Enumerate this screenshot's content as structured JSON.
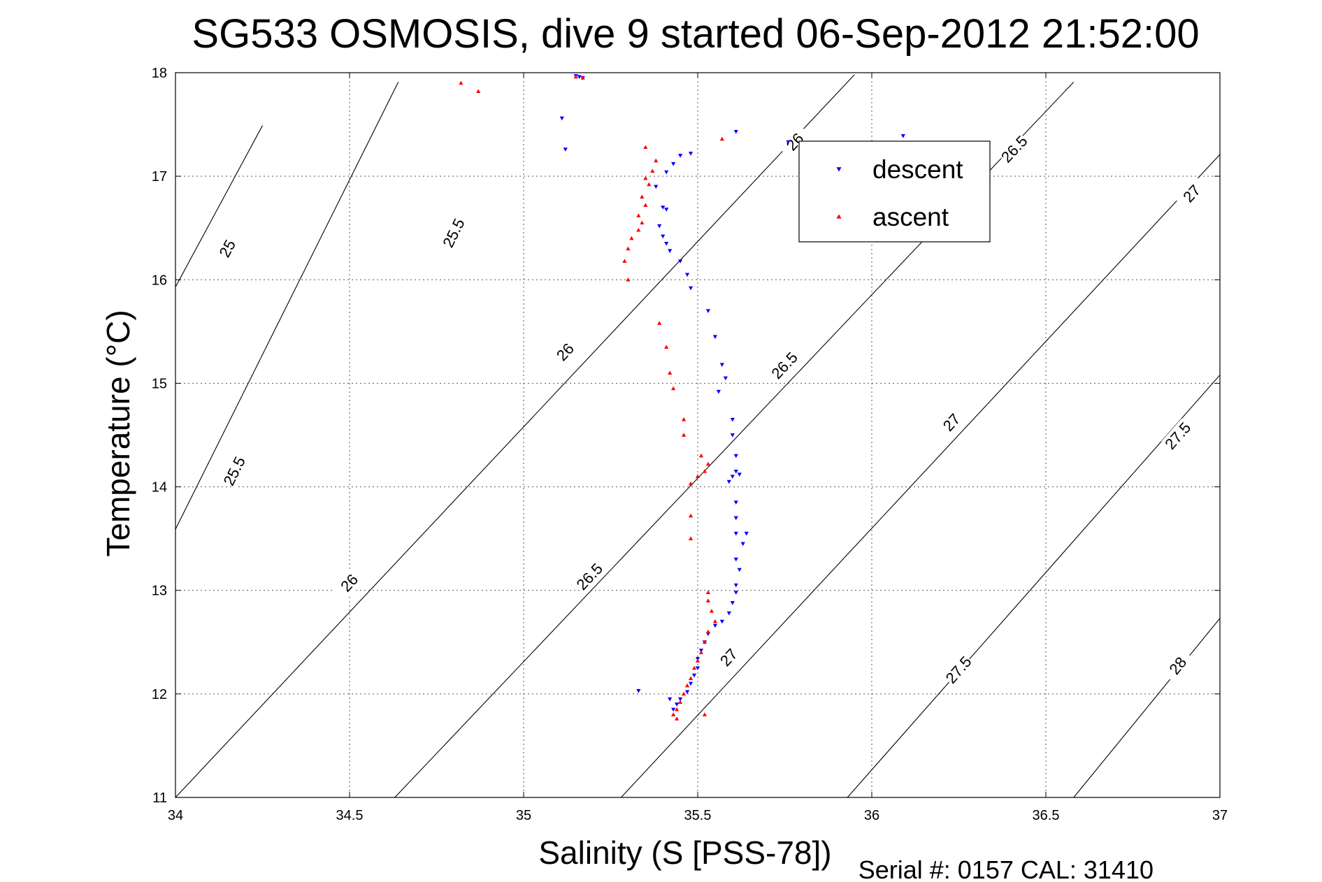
{
  "chart_data": {
    "type": "scatter",
    "title": "SG533 OSMOSIS, dive 9 started 06-Sep-2012 21:52:00",
    "xlabel": "Salinity (S [PSS-78])",
    "ylabel": "Temperature (°C)",
    "xlim": [
      34,
      37
    ],
    "ylim": [
      11,
      18
    ],
    "xticks": [
      34,
      34.5,
      35,
      35.5,
      36,
      36.5,
      37
    ],
    "yticks": [
      11,
      12,
      13,
      14,
      15,
      16,
      17,
      18
    ],
    "xtick_labels": [
      "34",
      "34.5",
      "35",
      "35.5",
      "36",
      "36.5",
      "37"
    ],
    "ytick_labels": [
      "11",
      "12",
      "13",
      "14",
      "15",
      "16",
      "17",
      "18"
    ],
    "grid": true,
    "legend_position": "top-right",
    "series": [
      {
        "name": "descent",
        "color": "#0000ff",
        "marker": "triangle-down",
        "points": [
          [
            35.11,
            17.56
          ],
          [
            35.12,
            17.26
          ],
          [
            35.15,
            17.97
          ],
          [
            35.16,
            17.96
          ],
          [
            35.17,
            17.95
          ],
          [
            35.48,
            17.22
          ],
          [
            35.45,
            17.2
          ],
          [
            35.43,
            17.12
          ],
          [
            35.41,
            17.04
          ],
          [
            35.38,
            16.9
          ],
          [
            35.4,
            16.7
          ],
          [
            35.41,
            16.68
          ],
          [
            35.39,
            16.52
          ],
          [
            35.4,
            16.42
          ],
          [
            35.41,
            16.35
          ],
          [
            35.42,
            16.28
          ],
          [
            35.45,
            16.18
          ],
          [
            35.47,
            16.05
          ],
          [
            35.48,
            15.92
          ],
          [
            35.53,
            15.7
          ],
          [
            35.55,
            15.45
          ],
          [
            35.57,
            15.18
          ],
          [
            35.58,
            15.05
          ],
          [
            35.56,
            14.92
          ],
          [
            35.6,
            14.65
          ],
          [
            35.6,
            14.5
          ],
          [
            35.61,
            14.3
          ],
          [
            35.61,
            14.15
          ],
          [
            35.62,
            14.12
          ],
          [
            35.6,
            14.1
          ],
          [
            35.59,
            14.05
          ],
          [
            35.61,
            13.85
          ],
          [
            35.61,
            13.7
          ],
          [
            35.61,
            13.55
          ],
          [
            35.64,
            13.55
          ],
          [
            35.63,
            13.45
          ],
          [
            35.61,
            13.3
          ],
          [
            35.62,
            13.2
          ],
          [
            35.61,
            13.05
          ],
          [
            35.61,
            12.98
          ],
          [
            35.6,
            12.88
          ],
          [
            35.59,
            12.78
          ],
          [
            35.57,
            12.7
          ],
          [
            35.55,
            12.66
          ],
          [
            35.53,
            12.58
          ],
          [
            35.52,
            12.5
          ],
          [
            35.51,
            12.42
          ],
          [
            35.5,
            12.34
          ],
          [
            35.5,
            12.25
          ],
          [
            35.49,
            12.18
          ],
          [
            35.48,
            12.1
          ],
          [
            35.47,
            12.02
          ],
          [
            35.45,
            11.95
          ],
          [
            35.44,
            11.9
          ],
          [
            35.43,
            11.85
          ],
          [
            35.42,
            11.95
          ],
          [
            35.33,
            12.03
          ],
          [
            35.76,
            17.33
          ],
          [
            35.61,
            17.43
          ],
          [
            36.09,
            17.39
          ]
        ]
      },
      {
        "name": "ascent",
        "color": "#ff0000",
        "marker": "triangle-up",
        "points": [
          [
            34.82,
            17.9
          ],
          [
            34.87,
            17.82
          ],
          [
            35.15,
            17.96
          ],
          [
            35.17,
            17.95
          ],
          [
            35.35,
            17.28
          ],
          [
            35.38,
            17.15
          ],
          [
            35.37,
            17.05
          ],
          [
            35.35,
            16.98
          ],
          [
            35.36,
            16.92
          ],
          [
            35.34,
            16.8
          ],
          [
            35.35,
            16.72
          ],
          [
            35.33,
            16.62
          ],
          [
            35.34,
            16.55
          ],
          [
            35.33,
            16.48
          ],
          [
            35.31,
            16.4
          ],
          [
            35.3,
            16.3
          ],
          [
            35.29,
            16.18
          ],
          [
            35.3,
            16.0
          ],
          [
            35.57,
            17.36
          ],
          [
            35.39,
            15.58
          ],
          [
            35.41,
            15.35
          ],
          [
            35.42,
            15.1
          ],
          [
            35.43,
            14.95
          ],
          [
            35.46,
            14.65
          ],
          [
            35.46,
            14.5
          ],
          [
            35.51,
            14.3
          ],
          [
            35.53,
            14.22
          ],
          [
            35.52,
            14.15
          ],
          [
            35.5,
            14.1
          ],
          [
            35.48,
            14.03
          ],
          [
            35.48,
            13.72
          ],
          [
            35.48,
            13.5
          ],
          [
            35.53,
            12.98
          ],
          [
            35.53,
            12.9
          ],
          [
            35.54,
            12.8
          ],
          [
            35.55,
            12.7
          ],
          [
            35.53,
            12.6
          ],
          [
            35.52,
            12.5
          ],
          [
            35.51,
            12.4
          ],
          [
            35.5,
            12.32
          ],
          [
            35.49,
            12.25
          ],
          [
            35.48,
            12.15
          ],
          [
            35.47,
            12.08
          ],
          [
            35.46,
            12.0
          ],
          [
            35.45,
            11.92
          ],
          [
            35.44,
            11.85
          ],
          [
            35.43,
            11.8
          ],
          [
            35.44,
            11.76
          ],
          [
            35.52,
            11.8
          ]
        ]
      }
    ],
    "contours": [
      {
        "level": 25,
        "label": "25",
        "points": [
          [
            34.25,
            17.49
          ],
          [
            34.0,
            15.93
          ]
        ],
        "labels_at": [
          [
            34.15,
            16.3
          ]
        ]
      },
      {
        "level": 25.5,
        "label": "25.5",
        "points": [
          [
            34.64,
            17.91
          ],
          [
            34.0,
            13.59
          ]
        ],
        "labels_at": [
          [
            34.8,
            16.45
          ],
          [
            34.17,
            14.15
          ]
        ]
      },
      {
        "level": 26,
        "label": "26",
        "points": [
          [
            35.95,
            17.98
          ],
          [
            34.0,
            11.0
          ]
        ],
        "labels_at": [
          [
            35.78,
            17.33
          ],
          [
            35.12,
            15.3
          ],
          [
            34.5,
            13.07
          ]
        ]
      },
      {
        "level": 26.5,
        "label": "26.5",
        "points": [
          [
            36.58,
            17.91
          ],
          [
            34.63,
            11.0
          ]
        ],
        "labels_at": [
          [
            36.41,
            17.26
          ],
          [
            35.75,
            15.17
          ],
          [
            35.19,
            13.13
          ]
        ]
      },
      {
        "level": 27,
        "label": "27",
        "points": [
          [
            37.0,
            17.21
          ],
          [
            35.28,
            11.0
          ]
        ],
        "labels_at": [
          [
            36.92,
            16.83
          ],
          [
            36.23,
            14.62
          ],
          [
            35.59,
            12.35
          ]
        ]
      },
      {
        "level": 27.5,
        "label": "27.5",
        "points": [
          [
            37.0,
            15.08
          ],
          [
            35.93,
            11.0
          ]
        ],
        "labels_at": [
          [
            36.88,
            14.49
          ],
          [
            36.25,
            12.23
          ]
        ]
      },
      {
        "level": 28,
        "label": "28",
        "points": [
          [
            37.0,
            12.73
          ],
          [
            36.58,
            11.0
          ]
        ],
        "labels_at": [
          [
            36.88,
            12.27
          ]
        ]
      }
    ]
  },
  "footer": "Serial #: 0157  CAL: 31410"
}
